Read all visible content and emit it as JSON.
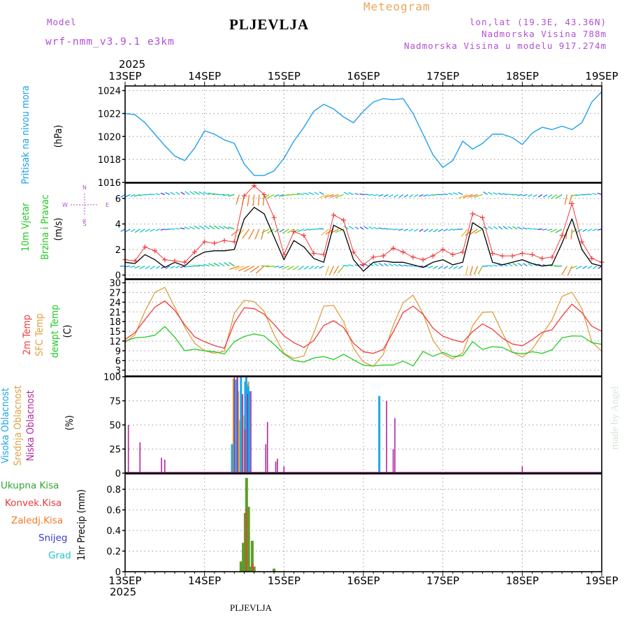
{
  "header": {
    "model_label": "Model",
    "model_name": "wrf-nmm_v3.9.1 e3km",
    "station": "PLJEVLJA",
    "product": "Meteogram",
    "lonlat": "lon,lat (19.3E, 43.36N)",
    "altitude": "Nadmorska Visina 788m",
    "model_altitude": "Nadmorska Visina u modelu 917.274m",
    "year_top": "2025",
    "year_bottom": "2025",
    "footer_station": "PLJEVLJA",
    "watermark": "made by Angel"
  },
  "colors": {
    "pressure": "#1ea0ee",
    "wind_speed": "#000000",
    "gust": "#f03c3c",
    "t2m": "#f03c3c",
    "tsfc": "#e0a040",
    "dewpt": "#22cc22",
    "high_cloud": "#1aa8e8",
    "mid_cloud": "#d9a441",
    "low_cloud": "#b0289a",
    "total_precip": "#5a9e28",
    "conv_precip": "#f03c3c"
  },
  "chart_data": [
    {
      "type": "line",
      "name": "pressure",
      "ylabel_lines": [
        "Pritisak na nivou mora"
      ],
      "unit": "(hPa)",
      "ylim": [
        1016,
        1024.4
      ],
      "yticks": [
        1016,
        1018,
        1020,
        1022,
        1024
      ],
      "x_hours": [
        0,
        3,
        6,
        9,
        12,
        15,
        18,
        21,
        24,
        27,
        30,
        33,
        36,
        39,
        42,
        45,
        48,
        51,
        54,
        57,
        60,
        63,
        66,
        69,
        72,
        75,
        78,
        81,
        84,
        87,
        90,
        93,
        96,
        99,
        102,
        105,
        108,
        111,
        114,
        117,
        120,
        123,
        126,
        129,
        132,
        135,
        138,
        141,
        144
      ],
      "values": [
        1022.0,
        1021.9,
        1021.2,
        1020.2,
        1019.2,
        1018.3,
        1017.9,
        1019.0,
        1020.5,
        1020.2,
        1019.7,
        1019.4,
        1017.6,
        1016.6,
        1016.6,
        1017.0,
        1018.1,
        1019.6,
        1020.8,
        1022.2,
        1022.8,
        1022.4,
        1021.7,
        1021.2,
        1022.2,
        1023.0,
        1023.3,
        1023.2,
        1023.3,
        1022.0,
        1020.2,
        1018.4,
        1017.3,
        1017.9,
        1019.6,
        1018.9,
        1019.4,
        1020.2,
        1020.2,
        1019.9,
        1019.3,
        1020.3,
        1020.8,
        1020.6,
        1020.9,
        1020.6,
        1021.2,
        1023.0,
        1023.9
      ]
    },
    {
      "type": "line",
      "name": "wind",
      "ylabel_lines": [
        "10m Vjetar",
        "Brzina i Pravac"
      ],
      "unit": "(m/s)",
      "ylim": [
        -0.3,
        7.2
      ],
      "yticks": [
        0,
        2,
        4,
        6
      ],
      "x_hours": [
        0,
        3,
        6,
        9,
        12,
        15,
        18,
        21,
        24,
        27,
        30,
        33,
        36,
        39,
        42,
        45,
        48,
        51,
        54,
        57,
        60,
        63,
        66,
        69,
        72,
        75,
        78,
        81,
        84,
        87,
        90,
        93,
        96,
        99,
        102,
        105,
        108,
        111,
        114,
        117,
        120,
        123,
        126,
        129,
        132,
        135,
        138,
        141,
        144
      ],
      "speed": [
        1.0,
        0.9,
        1.6,
        1.2,
        0.6,
        1.0,
        0.7,
        1.4,
        1.8,
        1.9,
        1.9,
        2.0,
        4.4,
        5.3,
        4.8,
        3.0,
        1.2,
        2.7,
        2.2,
        1.3,
        1.0,
        3.9,
        3.5,
        1.2,
        0.3,
        1.0,
        1.1,
        1.0,
        1.0,
        0.8,
        0.6,
        1.0,
        1.2,
        0.8,
        1.0,
        4.1,
        3.6,
        1.0,
        0.8,
        1.0,
        1.2,
        0.9,
        0.7,
        0.8,
        2.5,
        4.4,
        2.0,
        0.9,
        0.7
      ],
      "gust": [
        1.2,
        1.1,
        2.2,
        1.9,
        1.2,
        1.1,
        1.0,
        1.8,
        2.6,
        2.5,
        2.7,
        2.6,
        6.2,
        7.0,
        6.3,
        4.5,
        1.6,
        3.4,
        3.1,
        1.7,
        1.6,
        4.7,
        4.3,
        1.8,
        0.8,
        1.4,
        1.5,
        2.1,
        1.8,
        1.4,
        1.2,
        1.5,
        2.0,
        1.6,
        1.8,
        4.8,
        4.5,
        1.7,
        1.5,
        1.5,
        1.7,
        1.6,
        1.3,
        1.4,
        3.1,
        5.6,
        2.6,
        1.3,
        1.0
      ],
      "barb_rows": [
        0.7,
        3.6,
        6.3
      ],
      "compass_labels": [
        "N",
        "W",
        "E",
        "S",
        "α"
      ]
    },
    {
      "type": "line",
      "name": "temperature",
      "ylabel_lines": [
        "2m Temp",
        "SFC Temp",
        "dewpt Temp"
      ],
      "unit": "(C)",
      "ylim": [
        1.2,
        31
      ],
      "yticks": [
        3,
        6,
        9,
        12,
        15,
        18,
        21,
        24,
        27,
        30
      ],
      "x_hours": [
        0,
        3,
        6,
        9,
        12,
        15,
        18,
        21,
        24,
        27,
        30,
        33,
        36,
        39,
        42,
        45,
        48,
        51,
        54,
        57,
        60,
        63,
        66,
        69,
        72,
        75,
        78,
        81,
        84,
        87,
        90,
        93,
        96,
        99,
        102,
        105,
        108,
        111,
        114,
        117,
        120,
        123,
        126,
        129,
        132,
        135,
        138,
        141,
        144
      ],
      "t2m": [
        12.5,
        14.6,
        18.6,
        22.5,
        24.4,
        21.5,
        17.0,
        13.3,
        11.8,
        10.6,
        9.8,
        17.6,
        22.3,
        22.0,
        20.3,
        17.2,
        13.6,
        11.5,
        10.0,
        12.2,
        16.8,
        18.3,
        16.2,
        11.3,
        8.7,
        8.2,
        9.4,
        14.8,
        20.8,
        22.8,
        20.3,
        16.0,
        13.5,
        12.4,
        11.6,
        14.9,
        17.3,
        15.6,
        12.9,
        11.1,
        10.5,
        12.4,
        14.7,
        15.5,
        19.7,
        23.4,
        20.8,
        16.6,
        15.0
      ],
      "tsfc": [
        11.5,
        14.0,
        21.2,
        27.0,
        28.6,
        22.5,
        16.3,
        11.3,
        9.0,
        8.2,
        8.9,
        20.6,
        24.6,
        24.2,
        21.2,
        14.0,
        8.2,
        6.6,
        7.4,
        14.5,
        22.8,
        23.0,
        18.0,
        9.8,
        5.5,
        4.2,
        7.8,
        16.8,
        23.8,
        26.2,
        20.5,
        12.3,
        8.0,
        6.5,
        8.4,
        16.8,
        20.9,
        21.0,
        14.5,
        8.6,
        7.0,
        9.5,
        14.0,
        18.6,
        25.8,
        27.1,
        22.0,
        11.8,
        8.8
      ],
      "dewpt": [
        12.0,
        13.0,
        13.2,
        13.8,
        16.5,
        13.2,
        9.0,
        9.5,
        9.0,
        8.7,
        8.0,
        11.8,
        13.4,
        14.2,
        13.6,
        11.0,
        8.0,
        6.0,
        5.5,
        6.8,
        7.2,
        6.3,
        7.9,
        6.2,
        4.5,
        4.3,
        4.6,
        4.6,
        5.8,
        4.3,
        8.8,
        7.3,
        8.5,
        7.2,
        7.5,
        11.8,
        9.4,
        10.3,
        10.0,
        8.5,
        8.0,
        8.7,
        8.2,
        9.3,
        13.0,
        13.6,
        13.5,
        11.5,
        11.0
      ]
    },
    {
      "type": "bar",
      "name": "cloud",
      "ylabel_lines": [
        "Visoka Oblacnost",
        "Srednja Oblacnost",
        "Niska Oblacnost"
      ],
      "unit": "(%)",
      "ylim": [
        0,
        100
      ],
      "yticks": [
        0,
        25,
        50,
        75,
        100
      ],
      "high": [
        [
          32.3,
          30
        ],
        [
          33.5,
          97
        ],
        [
          35.0,
          100
        ],
        [
          36.3,
          95
        ],
        [
          36.6,
          100
        ],
        [
          37.2,
          90
        ],
        [
          37.5,
          85
        ],
        [
          76.8,
          80
        ]
      ],
      "mid": [
        [
          32.7,
          98
        ],
        [
          33.8,
          100
        ],
        [
          34.2,
          85
        ],
        [
          34.7,
          55
        ],
        [
          35.2,
          80
        ],
        [
          36.0,
          60
        ],
        [
          36.9,
          93
        ],
        [
          37.3,
          95
        ]
      ],
      "low": [
        [
          1.0,
          50
        ],
        [
          4.5,
          32
        ],
        [
          11.0,
          16
        ],
        [
          12.0,
          14
        ],
        [
          33.0,
          100
        ],
        [
          34.0,
          100
        ],
        [
          35.5,
          82
        ],
        [
          36.2,
          45
        ],
        [
          37.0,
          82
        ],
        [
          38.0,
          85
        ],
        [
          42.5,
          30
        ],
        [
          43.0,
          53
        ],
        [
          45.5,
          12
        ],
        [
          46.0,
          15
        ],
        [
          48.0,
          7
        ],
        [
          79.0,
          75
        ],
        [
          81.0,
          25
        ],
        [
          81.5,
          57
        ],
        [
          120.0,
          7
        ]
      ]
    },
    {
      "type": "bar",
      "name": "precip",
      "ylabel_lines": [
        "1hr Precip (mm)"
      ],
      "legend": [
        "Ukupna Kisa",
        "Konvek.Kisa",
        "Zaledj.Kisa",
        "Snijeg",
        "Grad"
      ],
      "legend_colors": [
        "#2fa82f",
        "#e83a3a",
        "#f07a28",
        "#3a3ad0",
        "#20c8c8"
      ],
      "ylim": [
        0,
        0.95
      ],
      "yticks": [
        0,
        0.2,
        0.4,
        0.6,
        0.8
      ],
      "total": [
        [
          35.0,
          0.1
        ],
        [
          35.7,
          0.28
        ],
        [
          36.3,
          0.57
        ],
        [
          36.7,
          0.91
        ],
        [
          37.3,
          0.63
        ],
        [
          37.7,
          0.05
        ],
        [
          38.4,
          0.3
        ],
        [
          39.0,
          0.05
        ],
        [
          45.0,
          0.03
        ]
      ],
      "conv": [
        [
          36.6,
          0.6
        ],
        [
          38.6,
          0.08
        ]
      ],
      "x_ticks": [
        "13SEP",
        "14SEP",
        "15SEP",
        "16SEP",
        "17SEP",
        "18SEP",
        "19SEP"
      ]
    }
  ]
}
